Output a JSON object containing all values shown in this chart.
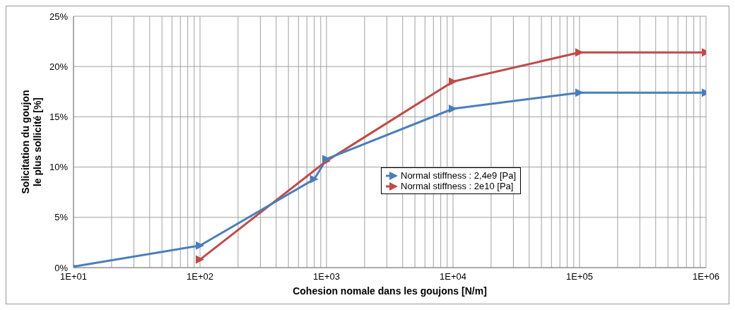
{
  "chart_data": {
    "type": "line",
    "xlabel": "Cohesion nomale dans les goujons [N/m]",
    "ylabel": "Solicitation du goujon\nle plus sollicité [%]",
    "log": "x",
    "grid": true,
    "legend": "center",
    "marker": "triangle",
    "line_style": "solid",
    "xlim": [
      10,
      1000000
    ],
    "ylim": [
      0,
      25
    ],
    "xticks": [
      {
        "value": 10,
        "label": "1E+01"
      },
      {
        "value": 20,
        "label": null
      },
      {
        "value": 30,
        "label": null
      },
      {
        "value": 40,
        "label": null
      },
      {
        "value": 50,
        "label": null
      },
      {
        "value": 60,
        "label": null
      },
      {
        "value": 70,
        "label": null
      },
      {
        "value": 80,
        "label": null
      },
      {
        "value": 90,
        "label": null
      },
      {
        "value": 100,
        "label": "1E+02"
      },
      {
        "value": 200,
        "label": null
      },
      {
        "value": 300,
        "label": null
      },
      {
        "value": 400,
        "label": null
      },
      {
        "value": 500,
        "label": null
      },
      {
        "value": 600,
        "label": null
      },
      {
        "value": 700,
        "label": null
      },
      {
        "value": 800,
        "label": null
      },
      {
        "value": 900,
        "label": null
      },
      {
        "value": 1000,
        "label": "1E+03"
      },
      {
        "value": 2000,
        "label": null
      },
      {
        "value": 3000,
        "label": null
      },
      {
        "value": 4000,
        "label": null
      },
      {
        "value": 5000,
        "label": null
      },
      {
        "value": 6000,
        "label": null
      },
      {
        "value": 7000,
        "label": null
      },
      {
        "value": 8000,
        "label": null
      },
      {
        "value": 9000,
        "label": null
      },
      {
        "value": 10000,
        "label": "1E+04"
      },
      {
        "value": 20000,
        "label": null
      },
      {
        "value": 30000,
        "label": null
      },
      {
        "value": 40000,
        "label": null
      },
      {
        "value": 50000,
        "label": null
      },
      {
        "value": 60000,
        "label": null
      },
      {
        "value": 70000,
        "label": null
      },
      {
        "value": 80000,
        "label": null
      },
      {
        "value": 90000,
        "label": null
      },
      {
        "value": 100000,
        "label": "1E+05"
      },
      {
        "value": 200000,
        "label": null
      },
      {
        "value": 300000,
        "label": null
      },
      {
        "value": 400000,
        "label": null
      },
      {
        "value": 500000,
        "label": null
      },
      {
        "value": 600000,
        "label": null
      },
      {
        "value": 700000,
        "label": null
      },
      {
        "value": 800000,
        "label": null
      },
      {
        "value": 900000,
        "label": null
      },
      {
        "value": 1000000,
        "label": "1E+06"
      }
    ],
    "yticks": [
      {
        "value": 0,
        "label": "0%"
      },
      {
        "value": 5,
        "label": "5%"
      },
      {
        "value": 10,
        "label": "10%"
      },
      {
        "value": 15,
        "label": "15%"
      },
      {
        "value": 20,
        "label": "20%"
      },
      {
        "value": 25,
        "label": "25%"
      }
    ],
    "series": [
      {
        "name": "Normal stiffness : 2,4e9 [Pa]",
        "color": "#4a7ebb",
        "x": [
          10,
          100,
          800,
          1000,
          10000,
          100000,
          1000000
        ],
        "values": [
          0.1,
          2.2,
          8.8,
          10.8,
          15.8,
          17.4,
          17.4
        ]
      },
      {
        "name": "Normal stiffness : 2e10 [Pa]",
        "color": "#be4b48",
        "x": [
          100,
          1000,
          10000,
          100000,
          1000000
        ],
        "values": [
          0.8,
          10.6,
          18.5,
          21.4,
          21.4
        ]
      }
    ]
  }
}
